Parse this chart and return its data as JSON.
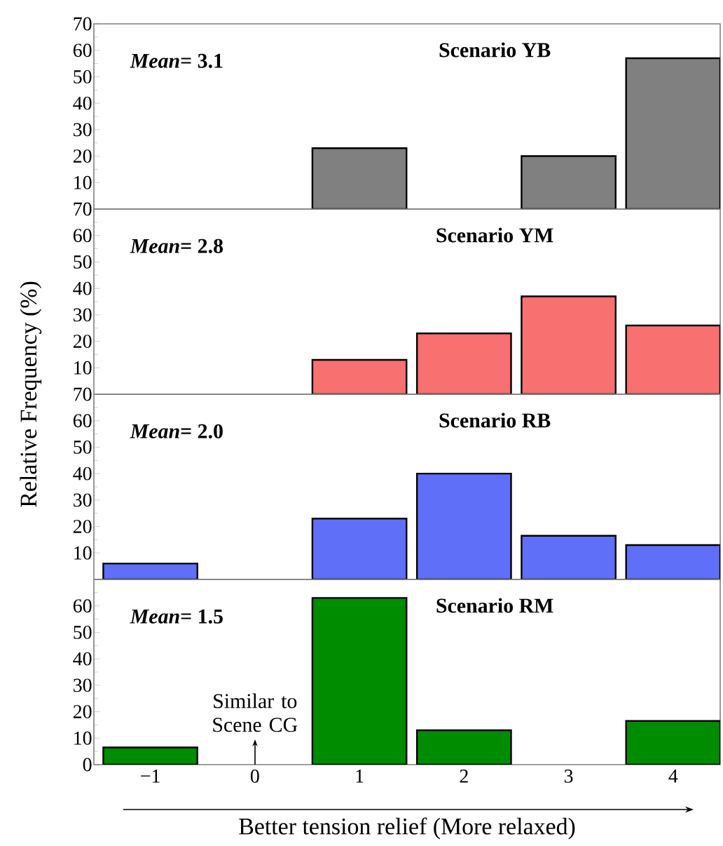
{
  "chart_data": [
    {
      "type": "bar",
      "title": "Scenario YB",
      "annotations": [
        "*Mean*= 3.1"
      ],
      "categories": [
        "−1",
        "0",
        "1",
        "2",
        "3",
        "4"
      ],
      "values": [
        null,
        null,
        23,
        null,
        20,
        57
      ],
      "color": "#808080",
      "ylim": [
        0,
        70
      ],
      "yticks": [
        10,
        20,
        30,
        40,
        50,
        60,
        70
      ],
      "tick_labels": "y"
    },
    {
      "type": "bar",
      "title": "Scenario YM",
      "ylabel": "Relative Frequency (%)",
      "annotations": [
        "*Mean*= 2.8"
      ],
      "categories": [
        "−1",
        "0",
        "1",
        "2",
        "3",
        "4"
      ],
      "values": [
        null,
        null,
        13,
        23,
        37,
        26
      ],
      "color": "#f87070",
      "ylim": [
        0,
        70
      ],
      "yticks": [
        10,
        20,
        30,
        40,
        50,
        60,
        70
      ],
      "tick_labels": "y"
    },
    {
      "type": "bar",
      "title": "Scenario RB",
      "annotations": [
        "*Mean*= 2.0"
      ],
      "categories": [
        "−1",
        "0",
        "1",
        "2",
        "3",
        "4"
      ],
      "values": [
        6,
        null,
        23,
        40,
        16.5,
        13
      ],
      "color": "#5f6ff8",
      "ylim": [
        0,
        70
      ],
      "yticks": [
        10,
        20,
        30,
        40,
        50,
        60,
        70
      ],
      "tick_labels": "y"
    },
    {
      "type": "bar",
      "title": "Scenario RM",
      "xlabel": "Better tension relief (More relaxed)",
      "annotations": [
        "*Mean*= 1.5",
        "Similar to Scene CG"
      ],
      "categories": [
        "−1",
        "0",
        "1",
        "2",
        "3",
        "4"
      ],
      "values": [
        6.5,
        null,
        63,
        13,
        null,
        16.5
      ],
      "color": "#008c00",
      "ylim": [
        0,
        70
      ],
      "yticks": [
        0,
        10,
        20,
        30,
        40,
        50,
        60,
        {
          "value": 70,
          "label": null
        }
      ]
    }
  ]
}
